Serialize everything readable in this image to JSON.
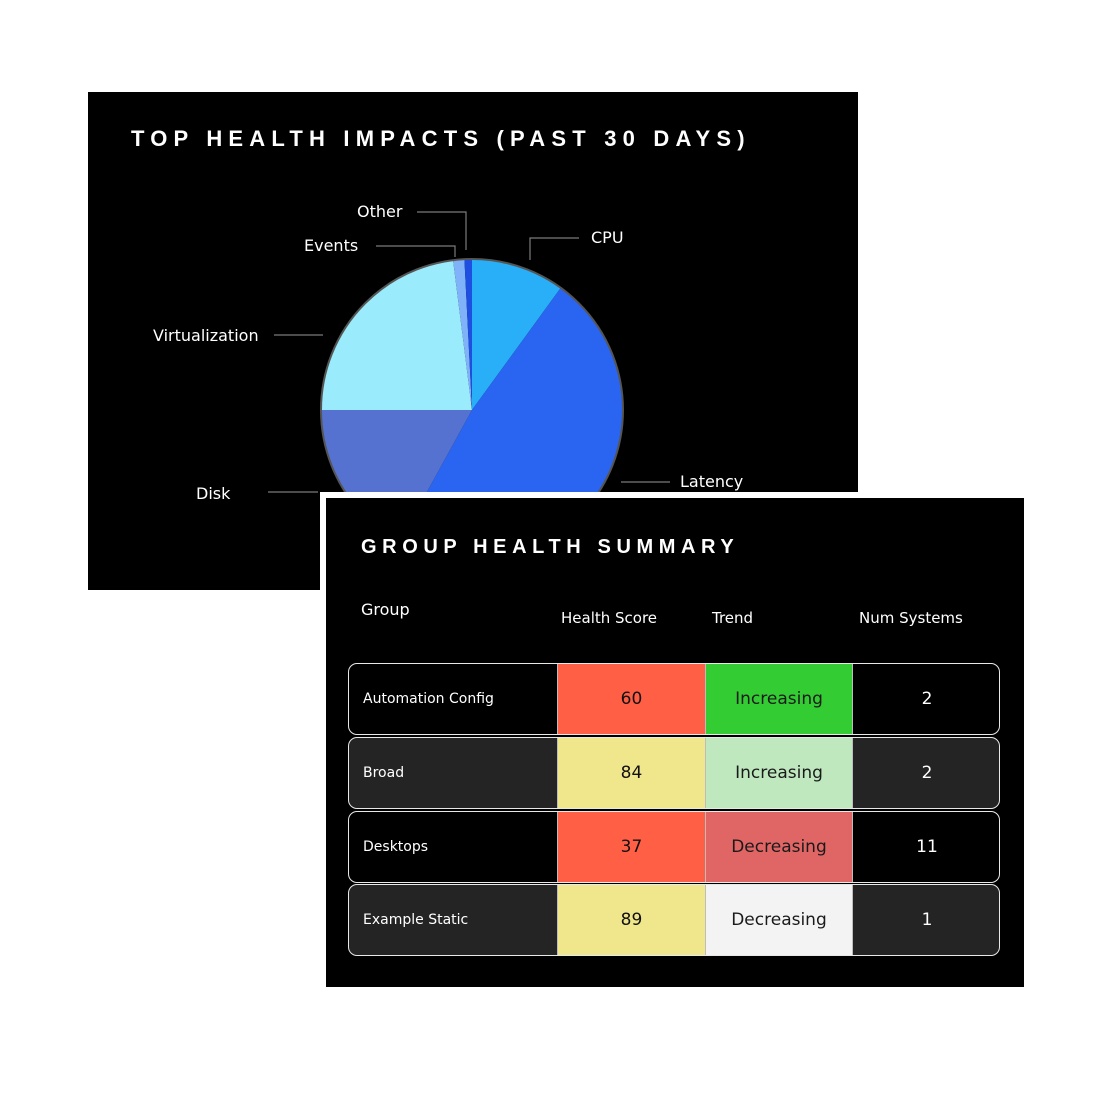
{
  "pie_panel": {
    "title": "TOP HEALTH IMPACTS (PAST 30 DAYS)"
  },
  "chart_data": {
    "type": "pie",
    "title": "TOP HEALTH IMPACTS (PAST 30 DAYS)",
    "slices": [
      {
        "label": "CPU",
        "value": 10,
        "color": "#29aef8"
      },
      {
        "label": "Latency",
        "value": 48,
        "color": "#2a65f2"
      },
      {
        "label": "Disk",
        "value": 17,
        "color": "#5572d1"
      },
      {
        "label": "Virtualization",
        "value": 23,
        "color": "#9aebfb"
      },
      {
        "label": "Events",
        "value": 1.2,
        "color": "#7fb2f8"
      },
      {
        "label": "Other",
        "value": 0.8,
        "color": "#1f4fe0"
      }
    ],
    "start_angle_deg": 0,
    "direction": "clockwise"
  },
  "table_panel": {
    "title": "GROUP HEALTH SUMMARY",
    "headers": {
      "group": "Group",
      "score": "Health Score",
      "trend": "Trend",
      "systems": "Num Systems"
    },
    "rows": [
      {
        "group": "Automation Config",
        "score": "60",
        "trend": "Increasing",
        "systems": "2",
        "score_color": "#ff5f45",
        "trend_color": "#33cc33"
      },
      {
        "group": "Broad",
        "score": "84",
        "trend": "Increasing",
        "systems": "2",
        "score_color": "#f0e68c",
        "trend_color": "#bfe8bf"
      },
      {
        "group": "Desktops",
        "score": "37",
        "trend": "Decreasing",
        "systems": "11",
        "score_color": "#ff5f45",
        "trend_color": "#e06666"
      },
      {
        "group": "Example Static",
        "score": "89",
        "trend": "Decreasing",
        "systems": "1",
        "score_color": "#f0e68c",
        "trend_color": "#f3f3f3"
      }
    ]
  }
}
